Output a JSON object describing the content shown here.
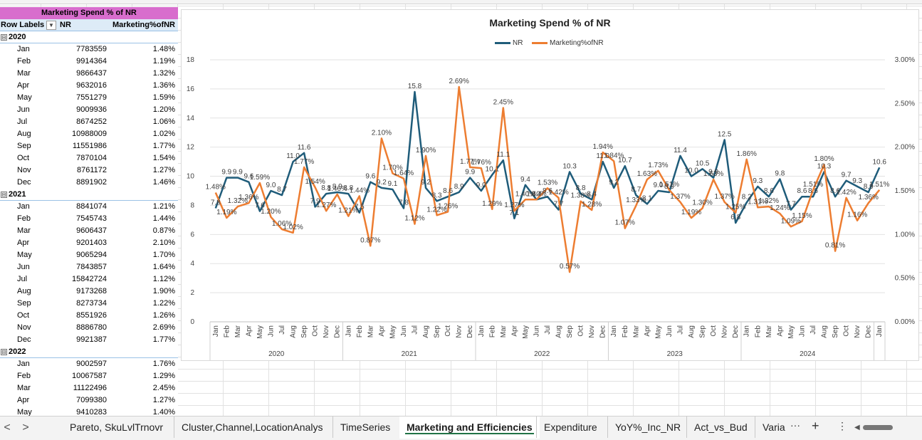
{
  "pivot": {
    "title": "Marketing Spend % of NR",
    "row_labels_header": "Row Labels",
    "col_nr_header": "NR",
    "col_mk_header": "Marketing%ofNR",
    "filter_icon": "dropdown-arrow-icon",
    "rows": [
      {
        "type": "year",
        "label": "2020",
        "toggle": "⊟"
      },
      {
        "type": "month",
        "label": "Jan",
        "nr": "7783559",
        "mk": "1.48%"
      },
      {
        "type": "month",
        "label": "Feb",
        "nr": "9914364",
        "mk": "1.19%"
      },
      {
        "type": "month",
        "label": "Mar",
        "nr": "9866437",
        "mk": "1.32%"
      },
      {
        "type": "month",
        "label": "Apr",
        "nr": "9632016",
        "mk": "1.36%"
      },
      {
        "type": "month",
        "label": "May",
        "nr": "7551279",
        "mk": "1.59%"
      },
      {
        "type": "month",
        "label": "Jun",
        "nr": "9009936",
        "mk": "1.20%"
      },
      {
        "type": "month",
        "label": "Jul",
        "nr": "8674252",
        "mk": "1.06%"
      },
      {
        "type": "month",
        "label": "Aug",
        "nr": "10988009",
        "mk": "1.02%"
      },
      {
        "type": "month",
        "label": "Sep",
        "nr": "11551986",
        "mk": "1.77%"
      },
      {
        "type": "month",
        "label": "Oct",
        "nr": "7870104",
        "mk": "1.54%"
      },
      {
        "type": "month",
        "label": "Nov",
        "nr": "8761172",
        "mk": "1.27%"
      },
      {
        "type": "month",
        "label": "Dec",
        "nr": "8891902",
        "mk": "1.46%"
      },
      {
        "type": "year",
        "label": "2021",
        "toggle": "⊟"
      },
      {
        "type": "month",
        "label": "Jan",
        "nr": "8841074",
        "mk": "1.21%"
      },
      {
        "type": "month",
        "label": "Feb",
        "nr": "7545743",
        "mk": "1.44%"
      },
      {
        "type": "month",
        "label": "Mar",
        "nr": "9606437",
        "mk": "0.87%"
      },
      {
        "type": "month",
        "label": "Apr",
        "nr": "9201403",
        "mk": "2.10%"
      },
      {
        "type": "month",
        "label": "May",
        "nr": "9065294",
        "mk": "1.70%"
      },
      {
        "type": "month",
        "label": "Jun",
        "nr": "7843857",
        "mk": "1.64%"
      },
      {
        "type": "month",
        "label": "Jul",
        "nr": "15842724",
        "mk": "1.12%"
      },
      {
        "type": "month",
        "label": "Aug",
        "nr": "9173268",
        "mk": "1.90%"
      },
      {
        "type": "month",
        "label": "Sep",
        "nr": "8273734",
        "mk": "1.22%"
      },
      {
        "type": "month",
        "label": "Oct",
        "nr": "8551926",
        "mk": "1.26%"
      },
      {
        "type": "month",
        "label": "Nov",
        "nr": "8886780",
        "mk": "2.69%"
      },
      {
        "type": "month",
        "label": "Dec",
        "nr": "9921387",
        "mk": "1.77%"
      },
      {
        "type": "year",
        "label": "2022",
        "toggle": "⊟"
      },
      {
        "type": "month",
        "label": "Jan",
        "nr": "9002597",
        "mk": "1.76%"
      },
      {
        "type": "month",
        "label": "Feb",
        "nr": "10067587",
        "mk": "1.29%"
      },
      {
        "type": "month",
        "label": "Mar",
        "nr": "11122496",
        "mk": "2.45%"
      },
      {
        "type": "month",
        "label": "Apr",
        "nr": "7099380",
        "mk": "1.27%"
      },
      {
        "type": "month",
        "label": "May",
        "nr": "9410283",
        "mk": "1.40%"
      }
    ]
  },
  "chart_data": {
    "type": "line",
    "title": "Marketing Spend % of NR",
    "legend_position": "top",
    "grid": true,
    "years": [
      "2020",
      "2021",
      "2022",
      "2023",
      "2024"
    ],
    "months": [
      "Jan",
      "Feb",
      "Mar",
      "Apr",
      "May",
      "Jun",
      "Jul",
      "Aug",
      "Sep",
      "Oct",
      "Nov",
      "Dec"
    ],
    "y_left": {
      "min": 0,
      "max": 18,
      "ticks": [
        "0",
        "2",
        "4",
        "6",
        "8",
        "10",
        "12",
        "14",
        "16",
        "18"
      ]
    },
    "y_right": {
      "min": 0,
      "max": 3,
      "ticks": [
        "0.00%",
        "0.50%",
        "1.00%",
        "1.50%",
        "2.00%",
        "2.50%",
        "3.00%"
      ]
    },
    "series": [
      {
        "name": "NR",
        "color": "#1f5c7a",
        "axis": "left",
        "values": [
          7.8,
          9.9,
          9.9,
          9.6,
          7.6,
          9.0,
          8.7,
          11.0,
          11.6,
          7.9,
          8.8,
          8.9,
          8.8,
          7.5,
          9.6,
          9.2,
          9.1,
          7.8,
          15.8,
          9.2,
          8.3,
          8.6,
          8.9,
          9.9,
          9.0,
          10.1,
          11.1,
          7.1,
          9.4,
          8.4,
          8.6,
          7.7,
          10.3,
          8.8,
          8.4,
          11.0,
          9.2,
          10.7,
          8.7,
          8.1,
          9.0,
          8.9,
          11.4,
          10.0,
          10.5,
          9.9,
          12.5,
          6.8,
          8.2,
          9.3,
          8.6,
          9.8,
          7.7,
          8.6,
          8.6,
          10.3,
          8.6,
          9.7,
          9.3,
          8.9,
          10.6
        ],
        "labels": [
          "7.8",
          "9.9",
          "9.9",
          "9.6",
          "7.6",
          "9.0",
          "8.7",
          "11.0",
          "11.6",
          "7.9",
          "8.8",
          "8.9",
          "8.8",
          "7.5",
          "9.6",
          "9.2",
          "9.1",
          "7.8",
          "15.8",
          "9.2",
          "8.3",
          "8.6",
          "8.9",
          "9.9",
          "9.0",
          "10.1",
          "11.1",
          "7.1",
          "9.4",
          "8.4",
          "8.6",
          "7.7",
          "10.3",
          "8.8",
          "8.4",
          "11.0",
          "9.2",
          "10.7",
          "8.7",
          "8.1",
          "9.0",
          "8.9",
          "11.4",
          "10.0",
          "10.5",
          "9.9",
          "12.5",
          "6.8",
          "8.2",
          "9.3",
          "8.6",
          "9.8",
          "7.7",
          "8.6",
          "8.6",
          "10.3",
          "8.6",
          "9.7",
          "9.3",
          "8.9",
          "10.6"
        ]
      },
      {
        "name": "Marketing%ofNR",
        "color": "#ed7d31",
        "axis": "right",
        "values": [
          1.48,
          1.19,
          1.32,
          1.36,
          1.59,
          1.2,
          1.06,
          1.02,
          1.77,
          1.54,
          1.27,
          1.46,
          1.21,
          1.44,
          0.87,
          2.1,
          1.7,
          1.64,
          1.12,
          1.9,
          1.22,
          1.26,
          2.69,
          1.77,
          1.76,
          1.29,
          2.45,
          1.27,
          1.4,
          1.4,
          1.53,
          1.42,
          0.57,
          1.38,
          1.28,
          1.94,
          1.84,
          1.07,
          1.33,
          1.63,
          1.73,
          1.51,
          1.37,
          1.19,
          1.3,
          1.63,
          1.37,
          1.25,
          1.86,
          1.31,
          1.32,
          1.24,
          1.09,
          1.15,
          1.51,
          1.8,
          0.81,
          1.42,
          1.16,
          1.36,
          1.51
        ],
        "labels": [
          "1.48%",
          "1.19%",
          "1.32%",
          "1.36%",
          "1.59%",
          "1.20%",
          "1.06%",
          "1.02%",
          "1.77%",
          "1.54%",
          "1.27%",
          "1.46%",
          "1.21%",
          "1.44%",
          "0.87%",
          "2.10%",
          "1.70%",
          "1.64%",
          "1.12%",
          "1.90%",
          "1.22%",
          "1.26%",
          "2.69%",
          "1.77%",
          "1.76%",
          "1.29%",
          "2.45%",
          "1.27%",
          "1.40%",
          "1.40%",
          "1.53%",
          "1.42%",
          "0.57%",
          "1.38%",
          "1.28%",
          "1.94%",
          "1.84%",
          "1.07%",
          "1.33%",
          "1.63%",
          "1.73%",
          "1.51%",
          "1.37%",
          "1.19%",
          "1.30%",
          "1.63%",
          "1.37%",
          "1.25%",
          "1.86%",
          "1.31%",
          "1.32%",
          "1.24%",
          "1.09%",
          "1.15%",
          "1.51%",
          "1.80%",
          "0.81%",
          "1.42%",
          "1.16%",
          "1.36%",
          "1.51%"
        ]
      }
    ]
  },
  "tabs": {
    "items": [
      "Pareto, SkuLvlTrnovr",
      "Cluster,Channel,LocationAnalys",
      "TimeSeries",
      "Marketing and Efficiencies",
      "Expenditure",
      "YoY%_Inc_NR",
      "Act_vs_Bud",
      "Varia"
    ],
    "active_index": 3,
    "prev_icon": "chevron-left-icon",
    "next_icon": "chevron-right-icon",
    "more_icon": "ellipsis-icon",
    "add_icon": "plus-icon",
    "options_icon": "vertical-ellipsis-icon",
    "prev_glyph": "<",
    "next_glyph": ">",
    "more_glyph": "···",
    "add_glyph": "+",
    "options_glyph": "⋮"
  }
}
